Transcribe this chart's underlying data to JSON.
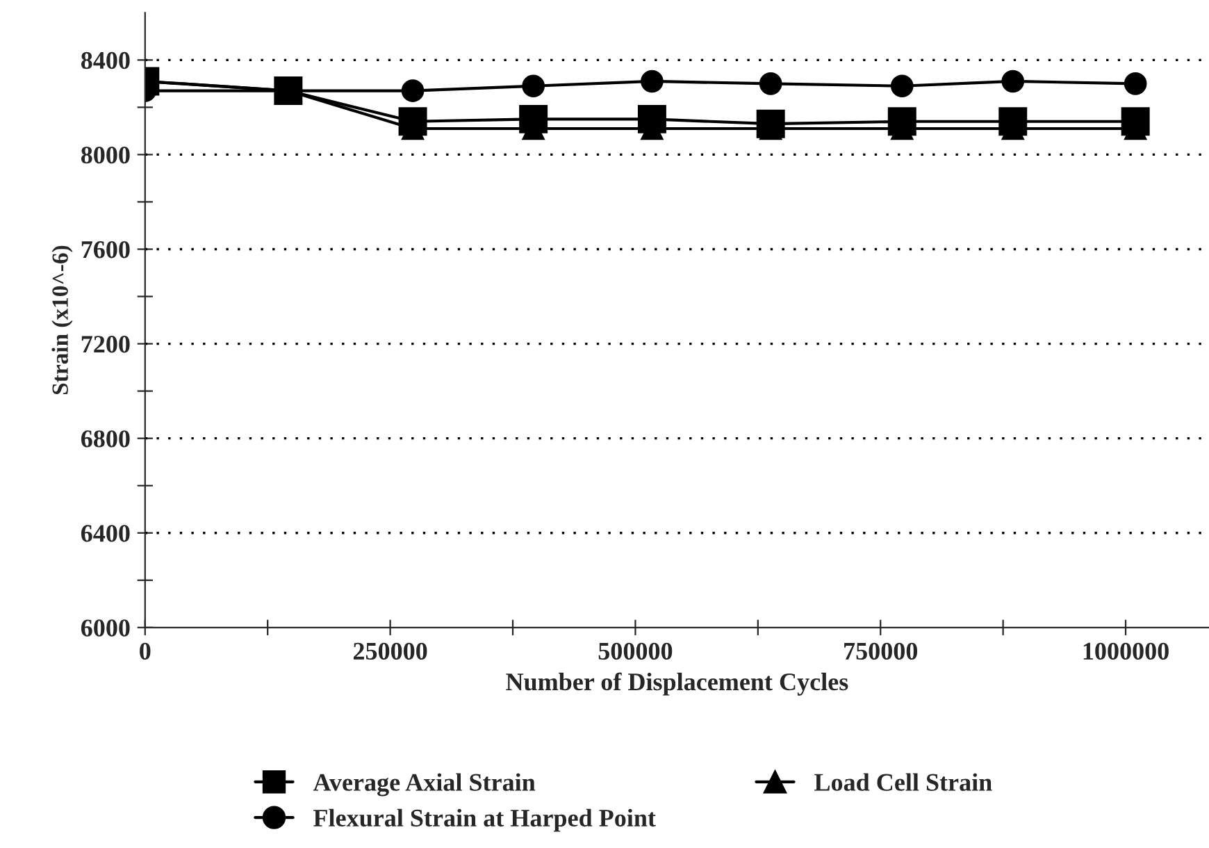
{
  "chart_data": {
    "type": "line",
    "xlabel": "Number of Displacement Cycles",
    "ylabel": "Strain (x10^-6)",
    "x": [
      0,
      146000,
      273000,
      396000,
      517000,
      638000,
      772000,
      885000,
      1010000
    ],
    "series": [
      {
        "name": "Average Axial Strain",
        "color": "#000000",
        "marker": "square",
        "values": [
          8310,
          8270,
          8140,
          8150,
          8150,
          8130,
          8140,
          8140,
          8140
        ]
      },
      {
        "name": "Load Cell Strain",
        "color": "#000000",
        "marker": "triangle",
        "values": [
          8310,
          8270,
          8110,
          8110,
          8110,
          8110,
          8110,
          8110,
          8110
        ]
      },
      {
        "name": "Flexural Strain at Harped Point",
        "color": "#000000",
        "marker": "circle",
        "values": [
          8270,
          8270,
          8270,
          8290,
          8310,
          8300,
          8290,
          8310,
          8300
        ]
      }
    ],
    "xlim": [
      0,
      1085000
    ],
    "ylim": [
      6000,
      8600
    ],
    "xticks": [
      0,
      {
        "value": 125000,
        "label": null
      },
      250000,
      {
        "value": 375000,
        "label": null
      },
      500000,
      {
        "value": 625000,
        "label": null
      },
      750000,
      {
        "value": 875000,
        "label": null
      },
      1000000
    ],
    "yticks": [
      6000,
      {
        "value": 6200,
        "label": null
      },
      6400,
      {
        "value": 6600,
        "label": null
      },
      6800,
      {
        "value": 7000,
        "label": null
      },
      7200,
      {
        "value": 7400,
        "label": null
      },
      7600,
      {
        "value": 7800,
        "label": null
      },
      8000,
      {
        "value": 8200,
        "label": null
      },
      8400
    ],
    "grid": "y",
    "legend": "bottom",
    "line_style": "solid"
  }
}
